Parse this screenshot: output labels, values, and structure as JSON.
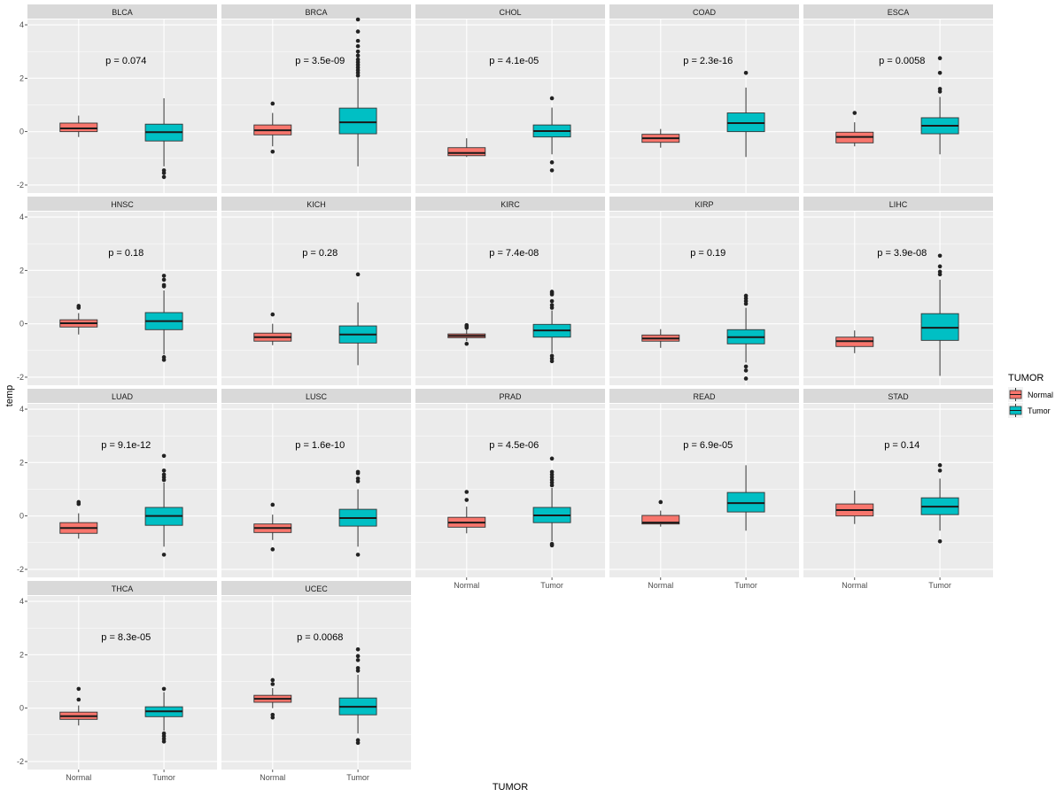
{
  "chart_data": {
    "type": "boxplot-facet",
    "xlabel": "TUMOR",
    "ylabel": "temp",
    "ylim": [
      -2.3,
      4.2
    ],
    "yticks": [
      -2,
      0,
      2,
      4
    ],
    "categories": [
      "Normal",
      "Tumor"
    ],
    "legend": {
      "title": "TUMOR",
      "position": "right",
      "entries": [
        {
          "label": "Normal",
          "color": "#F8766D"
        },
        {
          "label": "Tumor",
          "color": "#00BFC4"
        }
      ]
    },
    "colors": {
      "panel_bg": "#EBEBEB",
      "strip_bg": "#D9D9D9",
      "grid": "#FFFFFF",
      "normal": "#F8766D",
      "tumor": "#00BFC4",
      "outline": "#333333"
    },
    "facets": [
      {
        "name": "BLCA",
        "pvalue": "p = 0.074",
        "normal": {
          "q1": 0.0,
          "median": 0.12,
          "q3": 0.32,
          "wlo": -0.2,
          "whi": 0.6,
          "outliers": []
        },
        "tumor": {
          "q1": -0.35,
          "median": -0.02,
          "q3": 0.28,
          "wlo": -1.3,
          "whi": 1.25,
          "outliers": [
            -1.45,
            -1.55,
            -1.7
          ]
        }
      },
      {
        "name": "BRCA",
        "pvalue": "p = 3.5e-09",
        "normal": {
          "q1": -0.12,
          "median": 0.05,
          "q3": 0.25,
          "wlo": -0.55,
          "whi": 0.7,
          "outliers": [
            1.05,
            -0.75
          ]
        },
        "tumor": {
          "q1": -0.08,
          "median": 0.35,
          "q3": 0.88,
          "wlo": -1.3,
          "whi": 2.0,
          "outliers": [
            2.1,
            2.2,
            2.3,
            2.4,
            2.5,
            2.6,
            2.7,
            2.85,
            3.0,
            3.2,
            3.4,
            3.75,
            4.2
          ]
        }
      },
      {
        "name": "CHOL",
        "pvalue": "p = 4.1e-05",
        "normal": {
          "q1": -0.9,
          "median": -0.8,
          "q3": -0.6,
          "wlo": -0.95,
          "whi": -0.25,
          "outliers": []
        },
        "tumor": {
          "q1": -0.2,
          "median": 0.02,
          "q3": 0.25,
          "wlo": -0.85,
          "whi": 0.9,
          "outliers": [
            1.25,
            -1.15,
            -1.45
          ]
        }
      },
      {
        "name": "COAD",
        "pvalue": "p = 2.3e-16",
        "normal": {
          "q1": -0.4,
          "median": -0.25,
          "q3": -0.1,
          "wlo": -0.6,
          "whi": 0.1,
          "outliers": []
        },
        "tumor": {
          "q1": 0.0,
          "median": 0.32,
          "q3": 0.7,
          "wlo": -0.95,
          "whi": 1.65,
          "outliers": [
            2.2
          ]
        }
      },
      {
        "name": "ESCA",
        "pvalue": "p = 0.0058",
        "normal": {
          "q1": -0.42,
          "median": -0.2,
          "q3": -0.02,
          "wlo": -0.55,
          "whi": 0.35,
          "outliers": [
            0.7
          ]
        },
        "tumor": {
          "q1": -0.08,
          "median": 0.22,
          "q3": 0.52,
          "wlo": -0.85,
          "whi": 1.3,
          "outliers": [
            1.5,
            1.6,
            2.2,
            2.75
          ]
        }
      },
      {
        "name": "HNSC",
        "pvalue": "p = 0.18",
        "normal": {
          "q1": -0.12,
          "median": 0.02,
          "q3": 0.15,
          "wlo": -0.4,
          "whi": 0.4,
          "outliers": [
            0.6,
            0.67
          ]
        },
        "tumor": {
          "q1": -0.22,
          "median": 0.1,
          "q3": 0.42,
          "wlo": -1.15,
          "whi": 1.25,
          "outliers": [
            1.4,
            1.45,
            1.65,
            1.8,
            -1.25,
            -1.35
          ]
        }
      },
      {
        "name": "KICH",
        "pvalue": "p = 0.28",
        "normal": {
          "q1": -0.65,
          "median": -0.5,
          "q3": -0.35,
          "wlo": -0.8,
          "whi": 0.0,
          "outliers": [
            0.35
          ]
        },
        "tumor": {
          "q1": -0.72,
          "median": -0.4,
          "q3": -0.08,
          "wlo": -1.55,
          "whi": 0.8,
          "outliers": [
            1.85
          ]
        }
      },
      {
        "name": "KIRC",
        "pvalue": "p = 7.4e-08",
        "normal": {
          "q1": -0.52,
          "median": -0.45,
          "q3": -0.38,
          "wlo": -0.65,
          "whi": -0.2,
          "outliers": [
            -0.05,
            -0.1,
            -0.15,
            -0.75
          ]
        },
        "tumor": {
          "q1": -0.5,
          "median": -0.25,
          "q3": -0.02,
          "wlo": -1.1,
          "whi": 0.5,
          "outliers": [
            0.6,
            0.7,
            0.85,
            1.1,
            1.15,
            1.2,
            -1.2,
            -1.3,
            -1.4
          ]
        }
      },
      {
        "name": "KIRP",
        "pvalue": "p = 0.19",
        "normal": {
          "q1": -0.65,
          "median": -0.55,
          "q3": -0.42,
          "wlo": -0.9,
          "whi": -0.2,
          "outliers": []
        },
        "tumor": {
          "q1": -0.75,
          "median": -0.5,
          "q3": -0.22,
          "wlo": -1.45,
          "whi": 0.6,
          "outliers": [
            0.75,
            0.85,
            0.95,
            1.05,
            -1.6,
            -1.75,
            -2.05
          ]
        }
      },
      {
        "name": "LIHC",
        "pvalue": "p = 3.9e-08",
        "normal": {
          "q1": -0.85,
          "median": -0.65,
          "q3": -0.5,
          "wlo": -1.1,
          "whi": -0.25,
          "outliers": []
        },
        "tumor": {
          "q1": -0.62,
          "median": -0.15,
          "q3": 0.38,
          "wlo": -1.95,
          "whi": 1.65,
          "outliers": [
            1.85,
            1.95,
            2.15,
            2.55
          ]
        }
      },
      {
        "name": "LUAD",
        "pvalue": "p = 9.1e-12",
        "normal": {
          "q1": -0.65,
          "median": -0.45,
          "q3": -0.25,
          "wlo": -0.85,
          "whi": 0.1,
          "outliers": [
            0.45,
            0.52
          ]
        },
        "tumor": {
          "q1": -0.35,
          "median": 0.0,
          "q3": 0.32,
          "wlo": -1.15,
          "whi": 1.25,
          "outliers": [
            1.35,
            1.45,
            1.55,
            1.7,
            2.25,
            -1.45
          ]
        }
      },
      {
        "name": "LUSC",
        "pvalue": "p = 1.6e-10",
        "normal": {
          "q1": -0.62,
          "median": -0.45,
          "q3": -0.3,
          "wlo": -0.9,
          "whi": 0.05,
          "outliers": [
            0.42,
            -1.25
          ]
        },
        "tumor": {
          "q1": -0.38,
          "median": -0.08,
          "q3": 0.25,
          "wlo": -1.15,
          "whi": 1.0,
          "outliers": [
            1.3,
            1.4,
            1.6,
            1.65,
            -1.45
          ]
        }
      },
      {
        "name": "PRAD",
        "pvalue": "p = 4.5e-06",
        "normal": {
          "q1": -0.42,
          "median": -0.25,
          "q3": -0.05,
          "wlo": -0.65,
          "whi": 0.35,
          "outliers": [
            0.6,
            0.9
          ]
        },
        "tumor": {
          "q1": -0.25,
          "median": 0.02,
          "q3": 0.32,
          "wlo": -0.95,
          "whi": 1.05,
          "outliers": [
            1.15,
            1.25,
            1.35,
            1.45,
            1.55,
            1.65,
            2.15,
            -1.05,
            -1.1
          ]
        }
      },
      {
        "name": "READ",
        "pvalue": "p = 6.9e-05",
        "normal": {
          "q1": -0.3,
          "median": -0.25,
          "q3": 0.02,
          "wlo": -0.4,
          "whi": 0.2,
          "outliers": [
            0.52
          ]
        },
        "tumor": {
          "q1": 0.15,
          "median": 0.48,
          "q3": 0.88,
          "wlo": -0.55,
          "whi": 1.9,
          "outliers": []
        }
      },
      {
        "name": "STAD",
        "pvalue": "p = 0.14",
        "normal": {
          "q1": 0.0,
          "median": 0.22,
          "q3": 0.45,
          "wlo": -0.3,
          "whi": 0.95,
          "outliers": []
        },
        "tumor": {
          "q1": 0.05,
          "median": 0.35,
          "q3": 0.68,
          "wlo": -0.55,
          "whi": 1.4,
          "outliers": [
            1.7,
            1.9,
            -0.95
          ]
        }
      },
      {
        "name": "THCA",
        "pvalue": "p = 8.3e-05",
        "normal": {
          "q1": -0.42,
          "median": -0.3,
          "q3": -0.15,
          "wlo": -0.65,
          "whi": 0.1,
          "outliers": [
            0.32,
            0.72
          ]
        },
        "tumor": {
          "q1": -0.32,
          "median": -0.12,
          "q3": 0.05,
          "wlo": -0.85,
          "whi": 0.6,
          "outliers": [
            0.72,
            -0.95,
            -1.05,
            -1.15,
            -1.25
          ]
        }
      },
      {
        "name": "UCEC",
        "pvalue": "p = 0.0068",
        "normal": {
          "q1": 0.22,
          "median": 0.35,
          "q3": 0.48,
          "wlo": 0.0,
          "whi": 0.75,
          "outliers": [
            0.9,
            1.05,
            -0.25,
            -0.35
          ]
        },
        "tumor": {
          "q1": -0.25,
          "median": 0.05,
          "q3": 0.38,
          "wlo": -0.95,
          "whi": 1.25,
          "outliers": [
            1.4,
            1.5,
            1.8,
            1.95,
            2.2,
            -1.2,
            -1.3
          ]
        }
      }
    ]
  }
}
